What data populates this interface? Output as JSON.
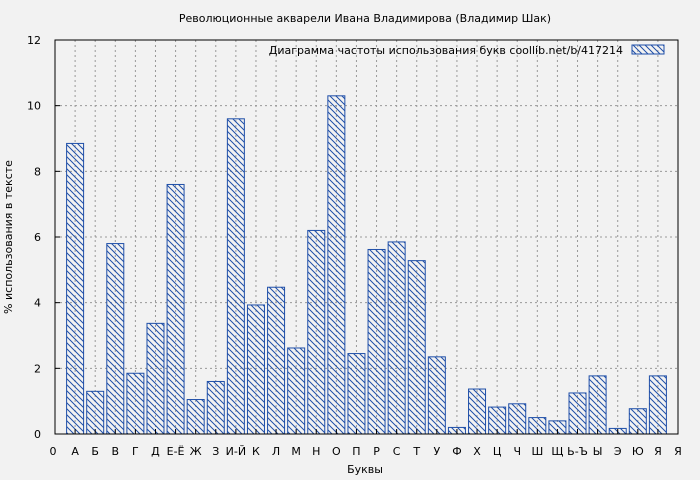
{
  "chart_data": {
    "type": "bar",
    "title": "Революционные акварели Ивана Владимирова (Владимир Шак)",
    "xlabel": "Буквы",
    "ylabel": "% использования в тексте",
    "ylim": [
      0,
      12
    ],
    "yticks": [
      0,
      2,
      4,
      6,
      8,
      10,
      12
    ],
    "grid": true,
    "legend_position": "top-right",
    "legend_label": "Диаграмма частоты использования букв  coollib.net/b/417214",
    "bar_color": "#1f4fa8",
    "background_color": "#f2f2f2",
    "x_edge_labels": [
      "0",
      "Я"
    ],
    "categories": [
      "А",
      "Б",
      "В",
      "Г",
      "Д",
      "Е-Ё",
      "Ж",
      "З",
      "И-Й",
      "К",
      "Л",
      "М",
      "Н",
      "О",
      "П",
      "Р",
      "С",
      "Т",
      "У",
      "Ф",
      "Х",
      "Ц",
      "Ч",
      "Ш",
      "Щ",
      "Ь-Ъ",
      "Ы",
      "Э",
      "Ю",
      "Я"
    ],
    "values": [
      8.85,
      1.3,
      5.8,
      1.85,
      3.37,
      7.6,
      1.05,
      1.6,
      9.6,
      3.93,
      4.47,
      2.62,
      6.2,
      10.3,
      2.45,
      5.62,
      5.85,
      5.28,
      2.35,
      0.2,
      1.37,
      0.82,
      0.92,
      0.5,
      0.4,
      1.25,
      1.77,
      0.17,
      0.77,
      1.77
    ]
  }
}
